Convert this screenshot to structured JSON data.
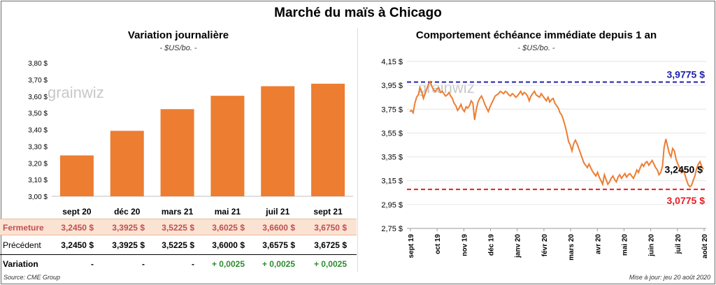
{
  "page": {
    "title": "Marché du maïs à Chicago",
    "source": "Source: CME Group",
    "update": "Mise à jour: jeu 20 août 2020",
    "watermark": "grainwiz"
  },
  "colors": {
    "bar": "#ed7d31",
    "line": "#ed7d31",
    "resistance": "#1f1fa8",
    "support": "#e31e24",
    "green": "#2e8b2e"
  },
  "chart_data": [
    {
      "type": "bar",
      "title": "Variation journalière",
      "unit": "- $US/bo. -",
      "categories": [
        "sept 20",
        "déc 20",
        "mars 21",
        "mai 21",
        "juil 21",
        "sept 21"
      ],
      "values": [
        3.245,
        3.3925,
        3.5225,
        3.6025,
        3.66,
        3.675
      ],
      "ylim": [
        3.0,
        3.8
      ],
      "yticks": [
        "3,00 $",
        "3,10 $",
        "3,20 $",
        "3,30 $",
        "3,40 $",
        "3,50 $",
        "3,60 $",
        "3,70 $",
        "3,80 $"
      ],
      "table": {
        "close_label": "Fermeture",
        "close": [
          "3,2450 $",
          "3,3925 $",
          "3,5225 $",
          "3,6025 $",
          "3,6600 $",
          "3,6750 $"
        ],
        "prev_label": "Précédent",
        "prev": [
          "3,2450 $",
          "3,3925 $",
          "3,5225 $",
          "3,6000 $",
          "3,6575 $",
          "3,6725 $"
        ],
        "var_label": "Variation",
        "var": [
          "-",
          "-",
          "-",
          "+ 0,0025",
          "+ 0,0025",
          "+ 0,0025"
        ]
      }
    },
    {
      "type": "line",
      "title": "Comportement échéance immédiate depuis 1 an",
      "unit": "- $US/bo. -",
      "ylim": [
        2.75,
        4.15
      ],
      "yticks": [
        "2,75 $",
        "2,95 $",
        "3,15 $",
        "3,35 $",
        "3,55 $",
        "3,75 $",
        "3,95 $",
        "4,15 $"
      ],
      "xticks": [
        "sept 19",
        "oct 19",
        "nov 19",
        "déc 19",
        "janv 20",
        "févr 20",
        "mars 20",
        "avr 20",
        "mai 20",
        "juin 20",
        "juil 20",
        "août 20"
      ],
      "resistance": 3.9775,
      "resistance_label": "3,9775 $",
      "support": 3.0775,
      "support_label": "3,0775 $",
      "last_label": "3,2450 $",
      "series": [
        {
          "values": [
            3.73,
            3.74,
            3.72,
            3.8,
            3.85,
            3.87,
            3.93,
            3.9,
            3.84,
            3.88,
            3.92,
            3.96,
            3.98,
            3.94,
            3.91,
            3.9,
            3.92,
            3.93,
            3.89,
            3.9,
            3.88,
            3.86,
            3.87,
            3.89,
            3.86,
            3.84,
            3.8,
            3.78,
            3.74,
            3.76,
            3.79,
            3.75,
            3.73,
            3.77,
            3.76,
            3.78,
            3.82,
            3.8,
            3.66,
            3.75,
            3.81,
            3.84,
            3.86,
            3.83,
            3.79,
            3.76,
            3.73,
            3.77,
            3.8,
            3.83,
            3.86,
            3.87,
            3.88,
            3.9,
            3.89,
            3.88,
            3.9,
            3.89,
            3.87,
            3.86,
            3.88,
            3.87,
            3.85,
            3.86,
            3.88,
            3.9,
            3.87,
            3.89,
            3.88,
            3.86,
            3.82,
            3.86,
            3.88,
            3.9,
            3.87,
            3.86,
            3.85,
            3.88,
            3.86,
            3.84,
            3.82,
            3.85,
            3.81,
            3.83,
            3.84,
            3.8,
            3.78,
            3.76,
            3.72,
            3.7,
            3.66,
            3.61,
            3.55,
            3.48,
            3.45,
            3.4,
            3.46,
            3.49,
            3.46,
            3.42,
            3.38,
            3.34,
            3.3,
            3.28,
            3.26,
            3.29,
            3.26,
            3.23,
            3.21,
            3.19,
            3.22,
            3.18,
            3.15,
            3.12,
            3.2,
            3.16,
            3.12,
            3.14,
            3.17,
            3.19,
            3.16,
            3.14,
            3.18,
            3.2,
            3.17,
            3.19,
            3.21,
            3.18,
            3.2,
            3.21,
            3.19,
            3.17,
            3.2,
            3.24,
            3.22,
            3.26,
            3.29,
            3.27,
            3.3,
            3.31,
            3.28,
            3.3,
            3.32,
            3.29,
            3.26,
            3.24,
            3.2,
            3.22,
            3.27,
            3.43,
            3.5,
            3.44,
            3.38,
            3.35,
            3.42,
            3.4,
            3.33,
            3.29,
            3.26,
            3.22,
            3.24,
            3.21,
            3.16,
            3.12,
            3.1,
            3.11,
            3.15,
            3.19,
            3.25,
            3.29,
            3.31,
            3.27,
            3.245
          ]
        }
      ]
    }
  ]
}
